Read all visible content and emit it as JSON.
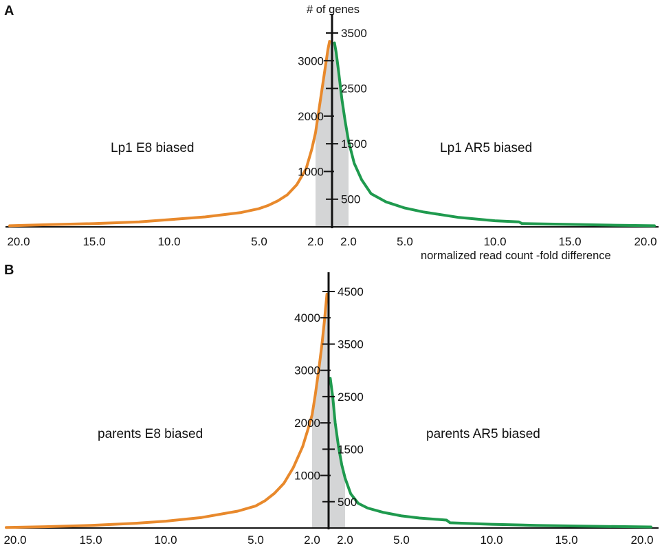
{
  "chart_data": [
    {
      "panel_letter": "A",
      "type": "line",
      "y_axis_title": "# of genes",
      "x_axis_title": "normalized read count -fold difference",
      "x_tick_labels": [
        "20.0",
        "15.0",
        "10.0",
        "5.0",
        "2.0",
        "2.0",
        "5.0",
        "10.0",
        "15.0",
        "20.0"
      ],
      "y_ticks_left": [
        1000,
        2000,
        3000
      ],
      "y_ticks_right": [
        500,
        1500,
        2500,
        3500
      ],
      "ylim": [
        0,
        3900
      ],
      "shaded_region_fold": 2.0,
      "left_label": "Lp1 E8 biased",
      "right_label": "Lp1 AR5 biased",
      "colors": {
        "left": "#e8892c",
        "right": "#1f9a4e",
        "shade": "#d4d5d6"
      },
      "series": [
        {
          "name": "Lp1 E8 biased",
          "side": "left",
          "points": [
            [
              21.2,
              20
            ],
            [
              18,
              40
            ],
            [
              15,
              60
            ],
            [
              12,
              90
            ],
            [
              10,
              130
            ],
            [
              8,
              180
            ],
            [
              6,
              260
            ],
            [
              5,
              330
            ],
            [
              4.5,
              390
            ],
            [
              4,
              470
            ],
            [
              3.5,
              580
            ],
            [
              3,
              760
            ],
            [
              2.5,
              1050
            ],
            [
              2.2,
              1400
            ],
            [
              2.0,
              1700
            ],
            [
              1.8,
              2100
            ],
            [
              1.6,
              2500
            ],
            [
              1.4,
              2900
            ],
            [
              1.25,
              3200
            ],
            [
              1.15,
              3350
            ]
          ]
        },
        {
          "name": "Lp1 AR5 biased",
          "side": "right",
          "points": [
            [
              1.15,
              3320
            ],
            [
              1.25,
              3150
            ],
            [
              1.4,
              2800
            ],
            [
              1.6,
              2300
            ],
            [
              1.8,
              1900
            ],
            [
              2.0,
              1550
            ],
            [
              2.3,
              1150
            ],
            [
              2.7,
              850
            ],
            [
              3.2,
              600
            ],
            [
              4,
              450
            ],
            [
              5,
              340
            ],
            [
              6,
              270
            ],
            [
              8,
              170
            ],
            [
              10,
              110
            ],
            [
              11.6,
              90
            ],
            [
              11.8,
              60
            ],
            [
              15,
              45
            ],
            [
              18,
              30
            ],
            [
              21.2,
              20
            ]
          ]
        }
      ]
    },
    {
      "panel_letter": "B",
      "type": "line",
      "y_axis_title": "",
      "x_axis_title": "",
      "x_tick_labels": [
        "20.0",
        "15.0",
        "10.0",
        "5.0",
        "2.0",
        "2.0",
        "5.0",
        "10.0",
        "15.0",
        "20.0"
      ],
      "y_ticks_left": [
        1000,
        2000,
        3000,
        4000
      ],
      "y_ticks_right": [
        500,
        1500,
        2500,
        3500,
        4500
      ],
      "ylim": [
        0,
        4700
      ],
      "shaded_region_fold": 2.0,
      "left_label": "parents E8 biased",
      "right_label": "parents AR5 biased",
      "colors": {
        "left": "#e8892c",
        "right": "#1f9a4e",
        "shade": "#d4d5d6"
      },
      "series": [
        {
          "name": "parents E8 biased",
          "side": "left",
          "points": [
            [
              21.2,
              10
            ],
            [
              18,
              25
            ],
            [
              15,
              50
            ],
            [
              12,
              90
            ],
            [
              10,
              130
            ],
            [
              8,
              200
            ],
            [
              6,
              320
            ],
            [
              5,
              420
            ],
            [
              4.5,
              520
            ],
            [
              4,
              660
            ],
            [
              3.5,
              850
            ],
            [
              3,
              1150
            ],
            [
              2.5,
              1550
            ],
            [
              2.2,
              1900
            ],
            [
              2.0,
              2150
            ],
            [
              1.8,
              2550
            ],
            [
              1.6,
              3000
            ],
            [
              1.4,
              3500
            ],
            [
              1.25,
              3950
            ],
            [
              1.1,
              4450
            ]
          ]
        },
        {
          "name": "parents AR5 biased",
          "side": "right",
          "points": [
            [
              1.1,
              2850
            ],
            [
              1.25,
              2500
            ],
            [
              1.4,
              2000
            ],
            [
              1.6,
              1550
            ],
            [
              1.8,
              1200
            ],
            [
              2.0,
              950
            ],
            [
              2.3,
              650
            ],
            [
              2.7,
              470
            ],
            [
              3.2,
              380
            ],
            [
              4,
              300
            ],
            [
              5,
              230
            ],
            [
              6,
              190
            ],
            [
              7.5,
              150
            ],
            [
              7.7,
              100
            ],
            [
              10,
              70
            ],
            [
              13,
              50
            ],
            [
              16,
              35
            ],
            [
              21.2,
              20
            ]
          ]
        }
      ]
    }
  ]
}
